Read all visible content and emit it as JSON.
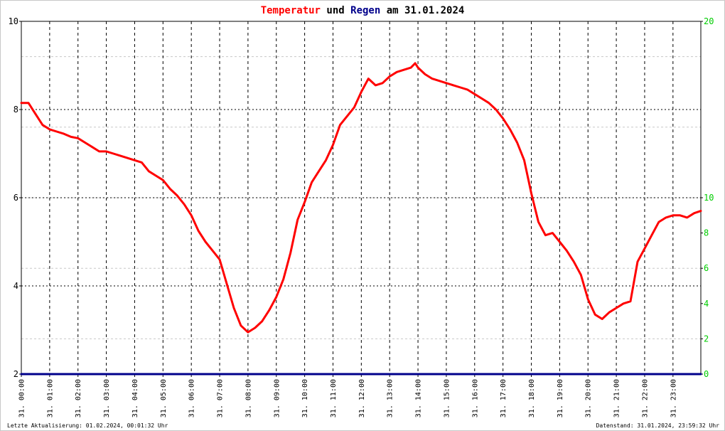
{
  "title": {
    "part1": "Temperatur",
    "part2": " und ",
    "part3": "Regen",
    "part4": " am 31.01.2024",
    "color1": "#ff0000",
    "color3": "#00008b"
  },
  "footer": {
    "left": "Letzte Aktualisierung: 01.02.2024, 00:01:32 Uhr",
    "right": "Datenstand: 31.01.2024, 23:59:32 Uhr"
  },
  "chart_data": {
    "type": "line",
    "x_range": [
      0,
      23.983
    ],
    "y_left": {
      "range": [
        2,
        10
      ],
      "ticks": [
        2,
        4,
        6,
        8,
        10
      ],
      "tick_labels": [
        "2",
        "4",
        "6",
        "8",
        "10"
      ],
      "color": "#000000"
    },
    "y_right": {
      "range": [
        0,
        20
      ],
      "ticks": [
        0,
        2,
        4,
        6,
        8,
        10,
        20
      ],
      "tick_labels": [
        "0",
        "2",
        "4",
        "6",
        "8",
        "10",
        "20"
      ],
      "color": "#00cc00"
    },
    "x_tick_labels": [
      "31. 00:00",
      "31. 01:00",
      "31. 02:00",
      "31. 03:00",
      "31. 04:00",
      "31. 05:00",
      "31. 06:00",
      "31. 07:00",
      "31. 08:00",
      "31. 09:00",
      "31. 10:00",
      "31. 11:00",
      "31. 12:00",
      "31. 13:00",
      "31. 14:00",
      "31. 15:00",
      "31. 16:00",
      "31. 17:00",
      "31. 18:00",
      "31. 19:00",
      "31. 20:00",
      "31. 21:00",
      "31. 22:00",
      "31. 23:00"
    ],
    "grid": true,
    "series": [
      {
        "color": "#ff0000",
        "axis": "left",
        "x": [
          0,
          0.25,
          0.5,
          0.75,
          1.0,
          1.25,
          1.5,
          1.75,
          2.0,
          2.25,
          2.5,
          2.75,
          3.0,
          3.25,
          3.5,
          3.75,
          4.0,
          4.25,
          4.5,
          4.75,
          5.0,
          5.25,
          5.5,
          5.75,
          6.0,
          6.25,
          6.5,
          6.75,
          7.0,
          7.25,
          7.5,
          7.75,
          8.0,
          8.25,
          8.5,
          8.75,
          9.0,
          9.25,
          9.5,
          9.75,
          10.0,
          10.25,
          10.5,
          10.75,
          11.0,
          11.25,
          11.5,
          11.75,
          12.0,
          12.25,
          12.5,
          12.75,
          13.0,
          13.25,
          13.5,
          13.75,
          13.9,
          14.0,
          14.25,
          14.5,
          14.75,
          15.0,
          15.25,
          15.5,
          15.75,
          16.0,
          16.25,
          16.5,
          16.75,
          17.0,
          17.25,
          17.5,
          17.75,
          18.0,
          18.25,
          18.5,
          18.75,
          19.0,
          19.25,
          19.5,
          19.75,
          20.0,
          20.25,
          20.5,
          20.75,
          21.0,
          21.25,
          21.5,
          21.75,
          22.0,
          22.25,
          22.5,
          22.75,
          23.0,
          23.25,
          23.5,
          23.75,
          23.983
        ],
        "values": [
          8.15,
          8.15,
          7.9,
          7.65,
          7.55,
          7.5,
          7.45,
          7.38,
          7.35,
          7.25,
          7.15,
          7.05,
          7.05,
          7.0,
          6.95,
          6.9,
          6.85,
          6.8,
          6.6,
          6.5,
          6.4,
          6.2,
          6.05,
          5.85,
          5.6,
          5.25,
          5.0,
          4.8,
          4.6,
          4.05,
          3.5,
          3.1,
          2.95,
          3.05,
          3.2,
          3.45,
          3.75,
          4.15,
          4.75,
          5.5,
          5.9,
          6.35,
          6.6,
          6.85,
          7.2,
          7.65,
          7.85,
          8.05,
          8.4,
          8.7,
          8.55,
          8.6,
          8.75,
          8.85,
          8.9,
          8.95,
          9.05,
          8.95,
          8.8,
          8.7,
          8.65,
          8.6,
          8.55,
          8.5,
          8.45,
          8.35,
          8.25,
          8.15,
          8.0,
          7.8,
          7.55,
          7.25,
          6.85,
          6.1,
          5.45,
          5.15,
          5.2,
          5.0,
          4.8,
          4.55,
          4.25,
          3.7,
          3.35,
          3.25,
          3.4,
          3.5,
          3.6,
          3.65,
          4.55,
          4.85,
          5.15,
          5.45,
          5.55,
          5.6,
          5.6,
          5.55,
          5.65,
          5.7
        ]
      },
      {
        "color": "#00008b",
        "axis": "right",
        "x": [
          0,
          23.983
        ],
        "values": [
          0,
          0
        ]
      }
    ]
  }
}
